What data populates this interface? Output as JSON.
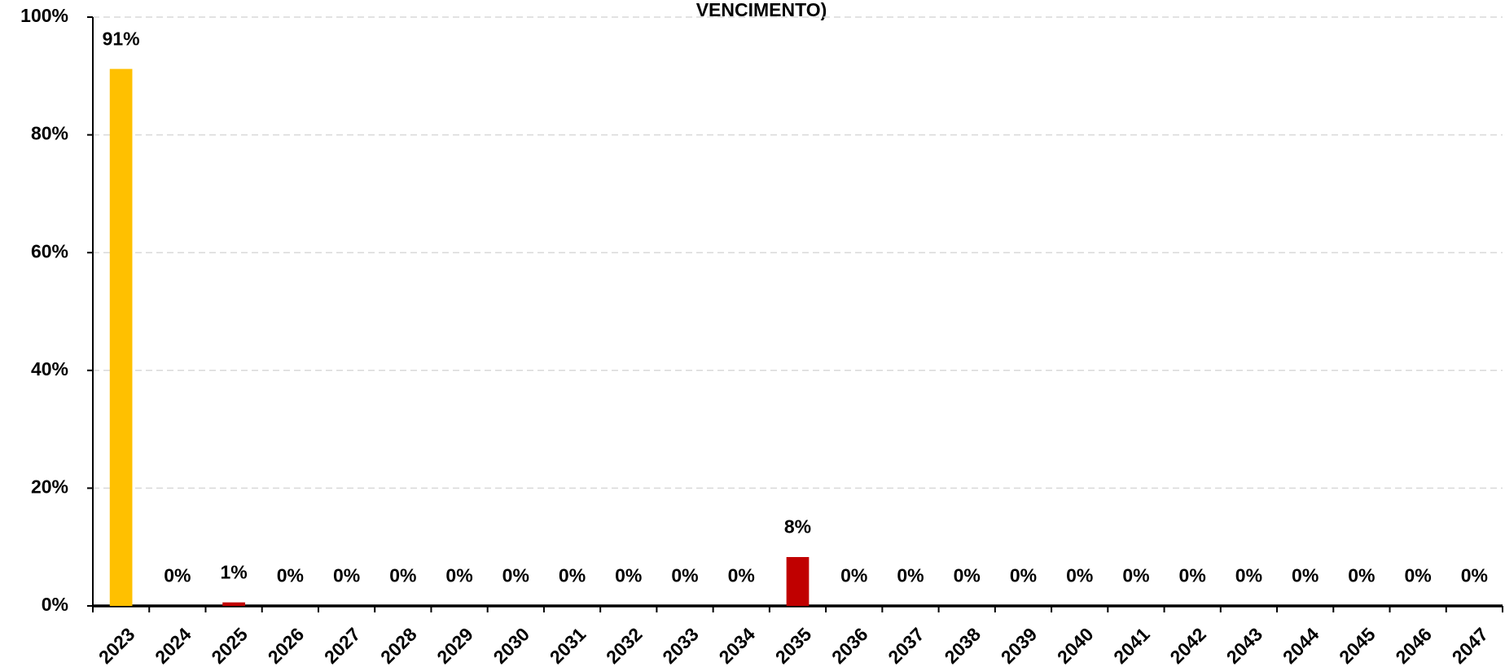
{
  "chart_data": {
    "type": "bar",
    "title": "VENCIMENTO)",
    "categories": [
      "2023",
      "2024",
      "2025",
      "2026",
      "2027",
      "2028",
      "2029",
      "2030",
      "2031",
      "2032",
      "2033",
      "2034",
      "2035",
      "2036",
      "2037",
      "2038",
      "2039",
      "2040",
      "2041",
      "2042",
      "2043",
      "2044",
      "2045",
      "2046",
      "2047"
    ],
    "values": [
      91.2,
      0,
      0.6,
      0,
      0,
      0,
      0,
      0,
      0,
      0,
      0,
      0,
      8.3,
      0,
      0,
      0,
      0,
      0,
      0,
      0,
      0,
      0,
      0,
      0,
      0
    ],
    "value_labels": [
      "91%",
      "0%",
      "1%",
      "0%",
      "0%",
      "0%",
      "0%",
      "0%",
      "0%",
      "0%",
      "0%",
      "0%",
      "8%",
      "0%",
      "0%",
      "0%",
      "0%",
      "0%",
      "0%",
      "0%",
      "0%",
      "0%",
      "0%",
      "0%",
      "0%"
    ],
    "colors": [
      "#FFC000",
      "#C00000",
      "#C00000",
      "#C00000",
      "#C00000",
      "#C00000",
      "#C00000",
      "#C00000",
      "#C00000",
      "#C00000",
      "#C00000",
      "#C00000",
      "#C00000",
      "#C00000",
      "#C00000",
      "#C00000",
      "#C00000",
      "#C00000",
      "#C00000",
      "#C00000",
      "#C00000",
      "#C00000",
      "#C00000",
      "#C00000",
      "#C00000"
    ],
    "ylim": [
      0,
      100
    ],
    "yticks": [
      {
        "value": 0,
        "label": "0%"
      },
      {
        "value": 20,
        "label": "20%"
      },
      {
        "value": 40,
        "label": "40%"
      },
      {
        "value": 60,
        "label": "60%"
      },
      {
        "value": 80,
        "label": "80%"
      },
      {
        "value": 100,
        "label": "100%"
      }
    ],
    "grid": true
  }
}
